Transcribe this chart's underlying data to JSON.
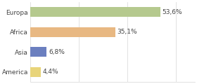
{
  "categories": [
    "Europa",
    "Africa",
    "Asia",
    "America"
  ],
  "values": [
    53.6,
    35.1,
    6.8,
    4.4
  ],
  "labels": [
    "53,6%",
    "35,1%",
    "6,8%",
    "4,4%"
  ],
  "colors": [
    "#b5c98e",
    "#e8b882",
    "#6b7fbf",
    "#e8d47a"
  ],
  "background_color": "#ffffff",
  "grid_color": "#dddddd",
  "text_color": "#444444",
  "bar_height": 0.5,
  "label_fontsize": 6.5,
  "category_fontsize": 6.5,
  "xlim": [
    0,
    68
  ],
  "grid_lines": [
    0,
    20,
    40,
    60
  ]
}
